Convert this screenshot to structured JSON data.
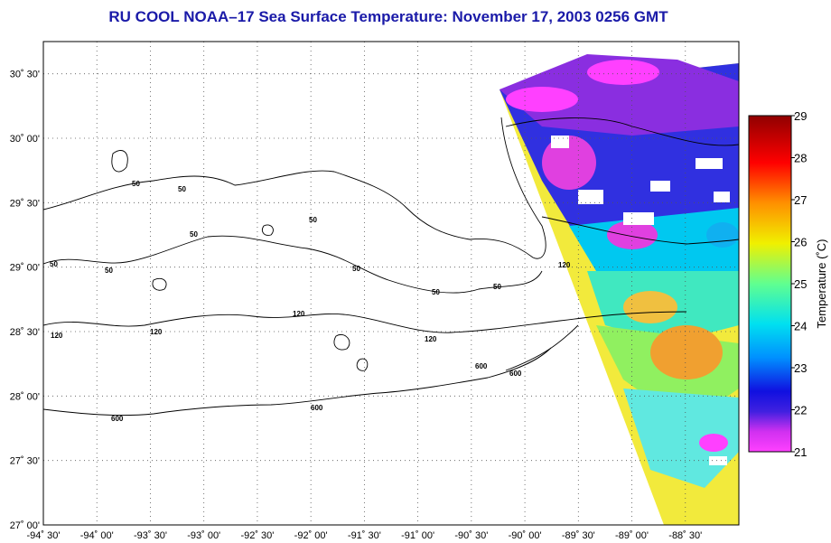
{
  "title": "RU COOL  NOAA–17  Sea Surface Temperature:  November 17, 2003 0256 GMT",
  "map": {
    "lon_range": [
      -94.5,
      -88.0
    ],
    "lat_range": [
      27.0,
      30.75
    ],
    "lat_ticks": [
      {
        "value": 27.0,
        "label": "27˚ 00'"
      },
      {
        "value": 27.5,
        "label": "27˚ 30'"
      },
      {
        "value": 28.0,
        "label": "28˚ 00'"
      },
      {
        "value": 28.5,
        "label": "28˚ 30'"
      },
      {
        "value": 29.0,
        "label": "29˚ 00'"
      },
      {
        "value": 29.5,
        "label": "29˚ 30'"
      },
      {
        "value": 30.0,
        "label": "30˚ 00'"
      },
      {
        "value": 30.5,
        "label": "30˚ 30'"
      }
    ],
    "lon_ticks": [
      {
        "value": -94.5,
        "label": "-94˚ 30'"
      },
      {
        "value": -94.0,
        "label": "-94˚ 00'"
      },
      {
        "value": -93.5,
        "label": "-93˚ 30'"
      },
      {
        "value": -93.0,
        "label": "-93˚ 00'"
      },
      {
        "value": -92.5,
        "label": "-92˚ 30'"
      },
      {
        "value": -92.0,
        "label": "-92˚ 00'"
      },
      {
        "value": -91.5,
        "label": "-91˚ 30'"
      },
      {
        "value": -91.0,
        "label": "-91˚ 00'"
      },
      {
        "value": -90.5,
        "label": "-90˚ 30'"
      },
      {
        "value": -90.0,
        "label": "-90˚ 00'"
      },
      {
        "value": -89.5,
        "label": "-89˚ 30'"
      },
      {
        "value": -89.0,
        "label": "-89˚ 00'"
      },
      {
        "value": -88.5,
        "label": "-88˚ 30'"
      }
    ],
    "grid": "dotted",
    "contour_labels": [
      "50",
      "120",
      "600"
    ]
  },
  "colorbar": {
    "label": "Temperature (˚C)",
    "min": 21,
    "max": 29,
    "ticks": [
      "21",
      "22",
      "23",
      "24",
      "25",
      "26",
      "27",
      "28",
      "29"
    ],
    "colors": [
      "#ff40ff",
      "#8020d0",
      "#1010e0",
      "#0090ff",
      "#00e0f0",
      "#60ff90",
      "#f0f000",
      "#ff9000",
      "#ff0000",
      "#900000"
    ]
  }
}
